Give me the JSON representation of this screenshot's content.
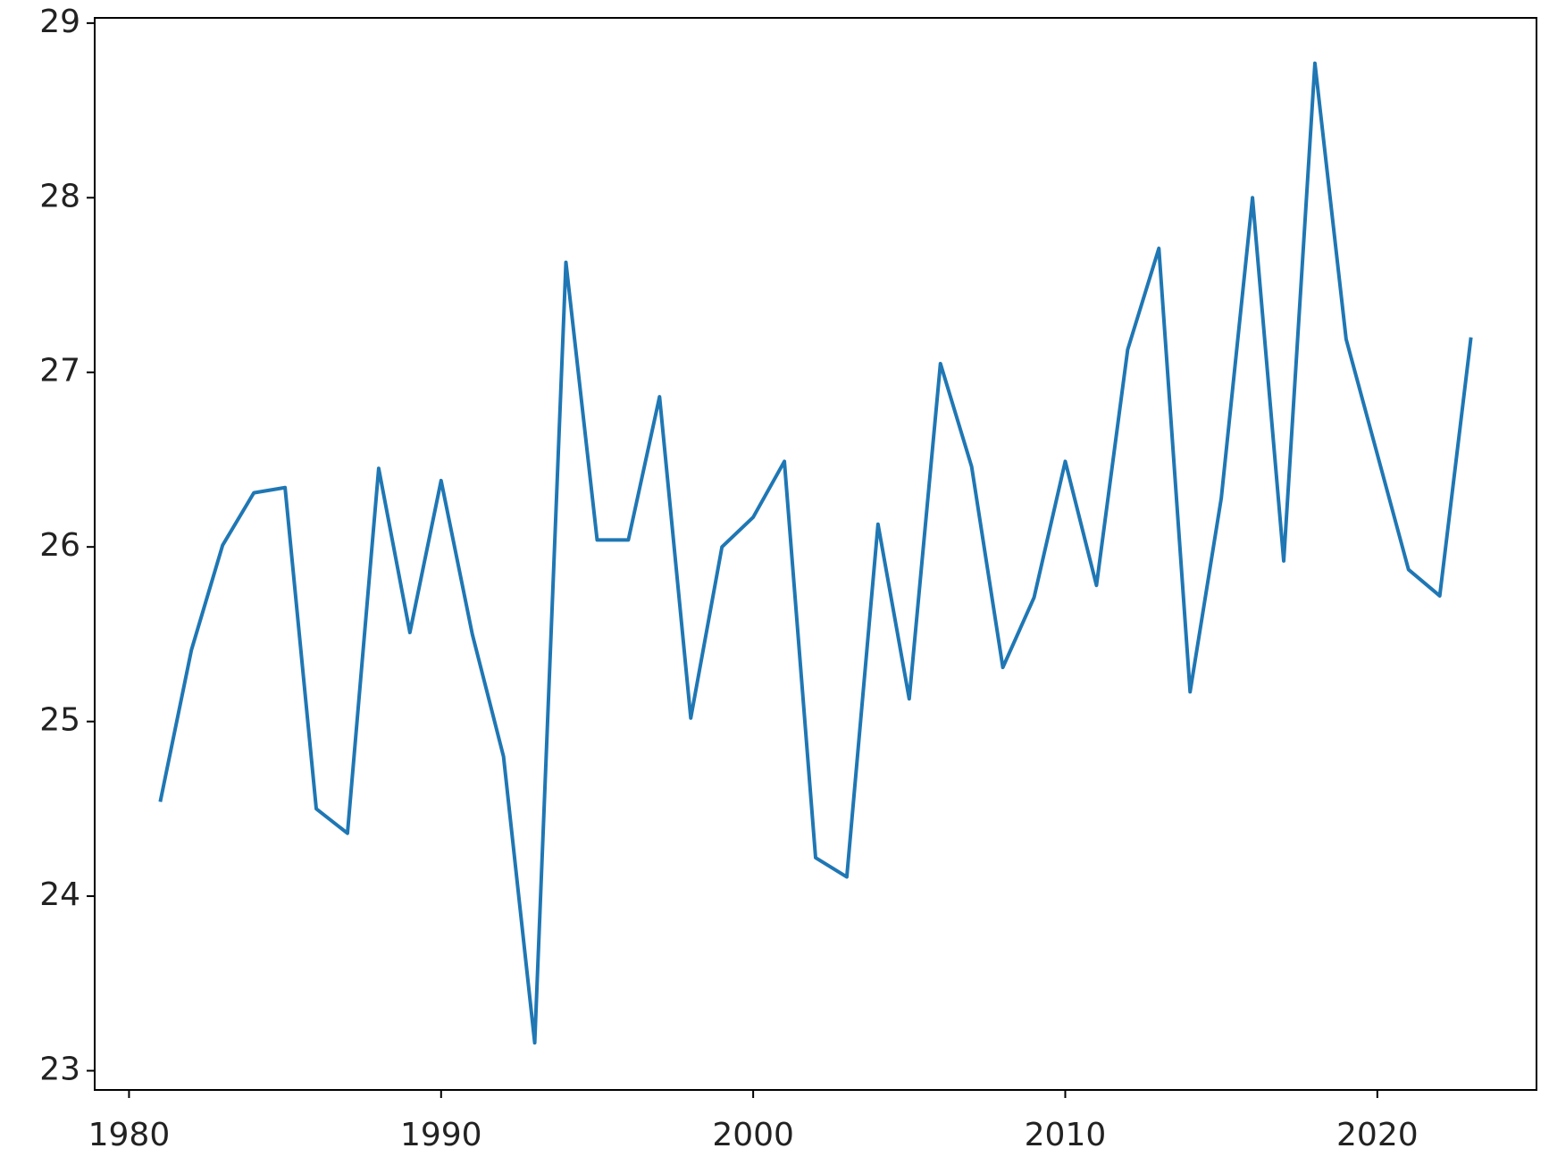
{
  "chart_data": {
    "type": "line",
    "x": [
      1981,
      1982,
      1983,
      1984,
      1985,
      1986,
      1987,
      1988,
      1989,
      1990,
      1991,
      1992,
      1993,
      1994,
      1995,
      1996,
      1997,
      1998,
      1999,
      2000,
      2001,
      2002,
      2003,
      2004,
      2005,
      2006,
      2007,
      2008,
      2009,
      2010,
      2011,
      2012,
      2013,
      2014,
      2015,
      2016,
      2017,
      2018,
      2019,
      2020,
      2021,
      2022,
      2023
    ],
    "series": [
      {
        "color": "#1f77b4",
        "values": [
          24.54,
          25.41,
          26.01,
          26.31,
          26.34,
          24.5,
          24.36,
          26.45,
          25.51,
          26.38,
          25.5,
          24.8,
          23.16,
          27.63,
          26.04,
          26.04,
          26.86,
          25.02,
          26.0,
          26.17,
          26.49,
          24.22,
          24.11,
          26.13,
          25.13,
          27.05,
          26.46,
          25.31,
          25.71,
          26.49,
          25.78,
          27.13,
          27.71,
          25.17,
          26.28,
          28.0,
          25.92,
          28.77,
          27.19,
          26.53,
          25.87,
          25.72,
          27.2
        ]
      }
    ],
    "xlim": [
      1978.9,
      2025.1
    ],
    "xticks": [
      1980,
      1990,
      2000,
      2010,
      2020
    ],
    "ylim": [
      22.89,
      29.03
    ],
    "yticks": [
      23,
      24,
      25,
      26,
      27,
      28,
      29
    ]
  }
}
